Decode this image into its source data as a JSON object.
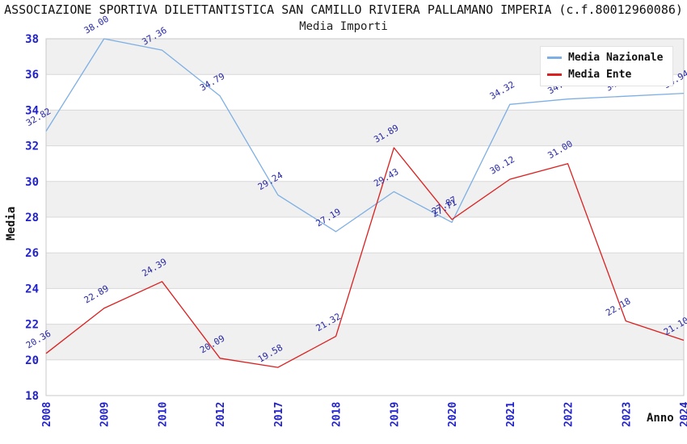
{
  "title": "ASSOCIAZIONE SPORTIVA DILETTANTISTICA SAN CAMILLO RIVIERA PALLAMANO IMPERIA (c.f.80012960086)",
  "subtitle": "Media Importi",
  "y_axis_label": "Media",
  "x_axis_label": "Anno",
  "legend": [
    {
      "label": "Media Nazionale",
      "color": "#7dafe4"
    },
    {
      "label": "Media Ente",
      "color": "#dc1f1f"
    }
  ],
  "chart_data": {
    "type": "line",
    "title": "Media Importi",
    "xlabel": "Anno",
    "ylabel": "Media",
    "categories": [
      "2008",
      "2009",
      "2010",
      "2012",
      "2017",
      "2018",
      "2019",
      "2020",
      "2021",
      "2022",
      "2023",
      "2024"
    ],
    "series": [
      {
        "name": "Media Nazionale",
        "color": "#7dafe4",
        "values": [
          32.82,
          38.0,
          37.36,
          34.79,
          29.24,
          27.19,
          29.43,
          27.71,
          34.32,
          34.62,
          34.78,
          34.94
        ]
      },
      {
        "name": "Media Ente",
        "color": "#dc1f1f",
        "values": [
          20.36,
          22.89,
          24.39,
          20.09,
          19.58,
          21.32,
          31.89,
          27.87,
          30.12,
          31.0,
          22.18,
          21.1
        ]
      }
    ],
    "ylim": [
      18,
      38
    ],
    "yticks": [
      18,
      20,
      22,
      24,
      26,
      28,
      30,
      32,
      34,
      36,
      38
    ],
    "grid": true,
    "banded_background": true,
    "legend_position": "top-right",
    "point_labels_decimals": 2
  },
  "colors": {
    "background": "#ffffff",
    "band_gray": "#f0f0f0",
    "gridline": "#d8d8d8",
    "plot_border": "#c9c9c9",
    "tick_label": "#2222cc",
    "data_label": "#2929a6",
    "text": "#111111"
  }
}
